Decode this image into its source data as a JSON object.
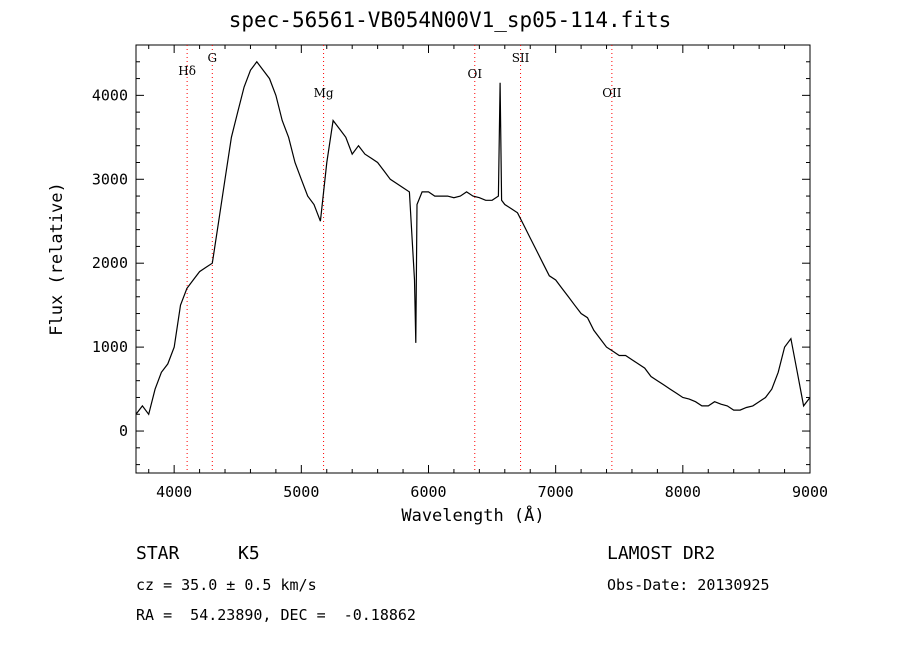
{
  "chart_data": {
    "type": "line",
    "title": "spec-56561-VB054N00V1_sp05-114.fits",
    "xlabel": "Wavelength (Å)",
    "ylabel": "Flux (relative)",
    "xlim": [
      3700,
      9000
    ],
    "ylim": [
      -500,
      4600
    ],
    "x_ticks": [
      4000,
      5000,
      6000,
      7000,
      8000,
      9000
    ],
    "x_tick_labels": [
      "4000",
      "5000",
      "6000",
      "7000",
      "8000",
      "9000"
    ],
    "y_ticks": [
      0,
      1000,
      2000,
      3000,
      4000
    ],
    "y_tick_labels": [
      "0",
      "1000",
      "2000",
      "3000",
      "4000"
    ],
    "grid": false,
    "line_color": "#000000",
    "marker_color": "#ff0000",
    "series": [
      {
        "x": [
          3700,
          3750,
          3800,
          3850,
          3900,
          3950,
          4000,
          4050,
          4100,
          4150,
          4200,
          4250,
          4300,
          4350,
          4400,
          4450,
          4500,
          4550,
          4600,
          4650,
          4700,
          4750,
          4800,
          4850,
          4900,
          4950,
          5000,
          5050,
          5100,
          5150,
          5200,
          5250,
          5300,
          5350,
          5400,
          5450,
          5500,
          5550,
          5600,
          5650,
          5700,
          5750,
          5800,
          5850,
          5890,
          5900,
          5910,
          5950,
          6000,
          6050,
          6100,
          6150,
          6200,
          6250,
          6300,
          6350,
          6400,
          6450,
          6500,
          6550,
          6563,
          6575,
          6600,
          6650,
          6700,
          6750,
          6800,
          6850,
          6900,
          6950,
          7000,
          7050,
          7100,
          7150,
          7200,
          7250,
          7300,
          7350,
          7400,
          7450,
          7500,
          7550,
          7600,
          7650,
          7700,
          7750,
          7800,
          7850,
          7900,
          7950,
          8000,
          8050,
          8100,
          8150,
          8200,
          8250,
          8300,
          8350,
          8400,
          8450,
          8500,
          8550,
          8600,
          8650,
          8700,
          8750,
          8800,
          8850,
          8900,
          8950,
          9000
        ],
        "y": [
          200,
          300,
          200,
          500,
          700,
          800,
          1000,
          1500,
          1700,
          1800,
          1900,
          1950,
          2000,
          2500,
          3000,
          3500,
          3800,
          4100,
          4300,
          4400,
          4300,
          4200,
          4000,
          3700,
          3500,
          3200,
          3000,
          2800,
          2700,
          2500,
          3200,
          3700,
          3600,
          3500,
          3300,
          3400,
          3300,
          3250,
          3200,
          3100,
          3000,
          2950,
          2900,
          2850,
          1800,
          1050,
          2700,
          2850,
          2850,
          2800,
          2800,
          2800,
          2780,
          2800,
          2850,
          2800,
          2780,
          2750,
          2750,
          2800,
          4150,
          2750,
          2700,
          2650,
          2600,
          2450,
          2300,
          2150,
          2000,
          1850,
          1800,
          1700,
          1600,
          1500,
          1400,
          1350,
          1200,
          1100,
          1000,
          950,
          900,
          900,
          850,
          800,
          750,
          650,
          600,
          550,
          500,
          450,
          400,
          380,
          350,
          300,
          300,
          350,
          320,
          300,
          250,
          250,
          280,
          300,
          350,
          400,
          500,
          700,
          1000,
          1100,
          700,
          300,
          400
        ]
      }
    ],
    "lines": [
      {
        "label": "Hδ",
        "x": 4102
      },
      {
        "label": "G",
        "x": 4300
      },
      {
        "label": "Mg",
        "x": 5175
      },
      {
        "label": "OI",
        "x": 6364
      },
      {
        "label": "SII",
        "x": 6724
      },
      {
        "label": "OII",
        "x": 7442
      }
    ]
  },
  "info": {
    "class": "STAR",
    "subclass": "K5",
    "survey": "LAMOST DR2",
    "cz": "cz = 35.0 ± 0.5 km/s",
    "obsdate": "Obs-Date: 20130925",
    "coords": "RA =  54.23890, DEC =  -0.18862"
  }
}
